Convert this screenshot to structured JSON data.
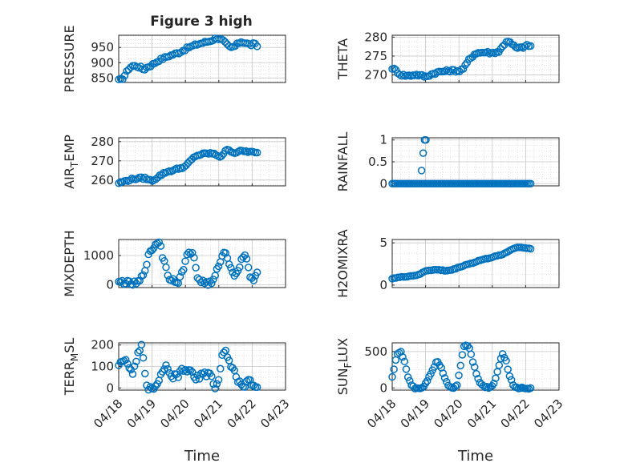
{
  "title": "Figure 3 high",
  "x_axis": {
    "label": "Time",
    "range": [
      "04/18",
      "04/23"
    ],
    "ticks": [
      "04/18",
      "04/19",
      "04/20",
      "04/21",
      "04/22",
      "04/23"
    ],
    "tick_values": [
      0,
      1,
      2,
      3,
      4,
      5
    ]
  },
  "marker": {
    "shape": "circle",
    "fill": "none",
    "color": "#0072BD"
  },
  "grid": {
    "major": true,
    "minor": true,
    "color": "#d0d0d0"
  },
  "chart_data": [
    {
      "type": "scatter",
      "ylabel": "PRESSURE",
      "ylim": [
        835,
        990
      ],
      "yticks": [
        850,
        900,
        950
      ],
      "ytick_labels": [
        "850",
        "900",
        "950"
      ],
      "anchors": [
        [
          0.0,
          842
        ],
        [
          0.1,
          846
        ],
        [
          0.2,
          862
        ],
        [
          0.3,
          880
        ],
        [
          0.4,
          890
        ],
        [
          0.55,
          888
        ],
        [
          0.65,
          885
        ],
        [
          0.75,
          877
        ],
        [
          0.85,
          885
        ],
        [
          1.0,
          893
        ],
        [
          1.2,
          908
        ],
        [
          1.5,
          922
        ],
        [
          1.8,
          933
        ],
        [
          2.1,
          950
        ],
        [
          2.4,
          962
        ],
        [
          2.7,
          970
        ],
        [
          2.95,
          981
        ],
        [
          3.1,
          975
        ],
        [
          3.25,
          958
        ],
        [
          3.35,
          948
        ],
        [
          3.5,
          955
        ],
        [
          3.65,
          970
        ],
        [
          3.8,
          965
        ],
        [
          3.95,
          958
        ],
        [
          4.05,
          962
        ],
        [
          4.15,
          955
        ]
      ],
      "n": 70,
      "noise": 4
    },
    {
      "type": "scatter",
      "ylabel": "THETA",
      "ylim": [
        268,
        280.5
      ],
      "yticks": [
        270,
        275,
        280
      ],
      "ytick_labels": [
        "270",
        "275",
        "280"
      ],
      "anchors": [
        [
          0.0,
          271.8
        ],
        [
          0.1,
          271.3
        ],
        [
          0.25,
          270.0
        ],
        [
          0.5,
          269.8
        ],
        [
          0.7,
          270.1
        ],
        [
          0.9,
          269.8
        ],
        [
          1.0,
          269.5
        ],
        [
          1.2,
          270.3
        ],
        [
          1.4,
          270.8
        ],
        [
          1.6,
          271.0
        ],
        [
          1.8,
          271.2
        ],
        [
          2.0,
          271.0
        ],
        [
          2.15,
          271.8
        ],
        [
          2.3,
          274.0
        ],
        [
          2.5,
          275.8
        ],
        [
          2.8,
          276.0
        ],
        [
          3.0,
          275.8
        ],
        [
          3.2,
          276.2
        ],
        [
          3.35,
          278.0
        ],
        [
          3.45,
          279.2
        ],
        [
          3.6,
          278.0
        ],
        [
          3.75,
          277.0
        ],
        [
          3.9,
          277.3
        ],
        [
          4.05,
          277.8
        ],
        [
          4.15,
          277.6
        ]
      ],
      "n": 75,
      "noise": 0.3
    },
    {
      "type": "scatter",
      "ylabel": "AIR_TEMP",
      "ylim": [
        257,
        282
      ],
      "yticks": [
        260,
        270,
        280
      ],
      "ytick_labels": [
        "260",
        "270",
        "280"
      ],
      "anchors": [
        [
          0.0,
          258.5
        ],
        [
          0.2,
          259.5
        ],
        [
          0.4,
          260.5
        ],
        [
          0.6,
          261.0
        ],
        [
          0.8,
          261.0
        ],
        [
          0.95,
          259.8
        ],
        [
          1.05,
          260.0
        ],
        [
          1.2,
          262.0
        ],
        [
          1.4,
          264.0
        ],
        [
          1.6,
          265.0
        ],
        [
          1.8,
          266.0
        ],
        [
          2.0,
          267.0
        ],
        [
          2.15,
          270.0
        ],
        [
          2.3,
          272.5
        ],
        [
          2.5,
          273.5
        ],
        [
          2.75,
          274.0
        ],
        [
          2.95,
          273.0
        ],
        [
          3.05,
          272.0
        ],
        [
          3.2,
          275.0
        ],
        [
          3.3,
          276.0
        ],
        [
          3.45,
          274.0
        ],
        [
          3.6,
          275.0
        ],
        [
          3.8,
          275.0
        ],
        [
          4.0,
          274.5
        ],
        [
          4.15,
          274.0
        ]
      ],
      "n": 75,
      "noise": 0.5
    },
    {
      "type": "scatter",
      "ylabel": "RAINFALL",
      "ylim": [
        -0.05,
        1.05
      ],
      "yticks": [
        0,
        0.5,
        1
      ],
      "ytick_labels": [
        "0",
        "0.5",
        "1"
      ],
      "anchors": [
        [
          0.0,
          0
        ],
        [
          4.15,
          0
        ]
      ],
      "n": 80,
      "noise": 0,
      "extra_points": [
        [
          0.88,
          0.3
        ],
        [
          0.93,
          0.7
        ],
        [
          0.97,
          1.0
        ],
        [
          1.01,
          1.0
        ]
      ]
    },
    {
      "type": "scatter",
      "ylabel": "MIXDEPTH",
      "ylim": [
        -100,
        1550
      ],
      "yticks": [
        0,
        1000
      ],
      "ytick_labels": [
        "0",
        "1000"
      ],
      "anchors": [
        [
          0.0,
          50
        ],
        [
          0.1,
          100
        ],
        [
          0.2,
          80
        ],
        [
          0.35,
          30
        ],
        [
          0.55,
          40
        ],
        [
          0.65,
          150
        ],
        [
          0.75,
          400
        ],
        [
          0.9,
          1000
        ],
        [
          1.05,
          1300
        ],
        [
          1.15,
          1450
        ],
        [
          1.25,
          1450
        ],
        [
          1.3,
          1000
        ],
        [
          1.38,
          800
        ],
        [
          1.45,
          350
        ],
        [
          1.55,
          200
        ],
        [
          1.7,
          150
        ],
        [
          1.8,
          120
        ],
        [
          1.9,
          400
        ],
        [
          2.0,
          800
        ],
        [
          2.1,
          1150
        ],
        [
          2.2,
          1100
        ],
        [
          2.3,
          700
        ],
        [
          2.35,
          250
        ],
        [
          2.5,
          100
        ],
        [
          2.65,
          50
        ],
        [
          2.8,
          40
        ],
        [
          2.9,
          300
        ],
        [
          3.0,
          700
        ],
        [
          3.1,
          1000
        ],
        [
          3.2,
          1100
        ],
        [
          3.3,
          800
        ],
        [
          3.4,
          500
        ],
        [
          3.5,
          250
        ],
        [
          3.6,
          600
        ],
        [
          3.75,
          1050
        ],
        [
          3.85,
          900
        ],
        [
          3.95,
          200
        ],
        [
          4.05,
          100
        ],
        [
          4.12,
          300
        ],
        [
          4.15,
          500
        ]
      ],
      "n": 80,
      "noise": 80
    },
    {
      "type": "scatter",
      "ylabel": "H2OMIXRA",
      "ylim": [
        -0.3,
        5.4
      ],
      "yticks": [
        0,
        5
      ],
      "ytick_labels": [
        "0",
        "5"
      ],
      "anchors": [
        [
          0.0,
          0.8
        ],
        [
          0.2,
          0.9
        ],
        [
          0.4,
          1.0
        ],
        [
          0.6,
          1.1
        ],
        [
          0.8,
          1.2
        ],
        [
          1.0,
          1.7
        ],
        [
          1.2,
          1.8
        ],
        [
          1.4,
          1.8
        ],
        [
          1.6,
          1.7
        ],
        [
          1.8,
          1.8
        ],
        [
          2.0,
          2.1
        ],
        [
          2.2,
          2.4
        ],
        [
          2.4,
          2.6
        ],
        [
          2.6,
          2.9
        ],
        [
          2.8,
          3.1
        ],
        [
          3.0,
          3.3
        ],
        [
          3.2,
          3.5
        ],
        [
          3.4,
          3.8
        ],
        [
          3.6,
          4.3
        ],
        [
          3.8,
          4.5
        ],
        [
          4.0,
          4.4
        ],
        [
          4.15,
          4.3
        ]
      ],
      "n": 75,
      "noise": 0.05
    },
    {
      "type": "scatter",
      "ylabel": "TERR_MSL",
      "ylim": [
        -10,
        210
      ],
      "yticks": [
        0,
        100,
        200
      ],
      "ytick_labels": [
        "0",
        "100",
        "200"
      ],
      "anchors": [
        [
          0.0,
          110
        ],
        [
          0.1,
          135
        ],
        [
          0.2,
          125
        ],
        [
          0.3,
          90
        ],
        [
          0.4,
          70
        ],
        [
          0.5,
          100
        ],
        [
          0.6,
          175
        ],
        [
          0.7,
          200
        ],
        [
          0.75,
          110
        ],
        [
          0.8,
          40
        ],
        [
          0.85,
          5
        ],
        [
          0.95,
          0
        ],
        [
          1.1,
          0
        ],
        [
          1.2,
          20
        ],
        [
          1.3,
          80
        ],
        [
          1.4,
          100
        ],
        [
          1.5,
          70
        ],
        [
          1.6,
          40
        ],
        [
          1.7,
          60
        ],
        [
          1.8,
          60
        ],
        [
          1.9,
          80
        ],
        [
          2.0,
          85
        ],
        [
          2.1,
          80
        ],
        [
          2.2,
          70
        ],
        [
          2.3,
          40
        ],
        [
          2.4,
          50
        ],
        [
          2.5,
          70
        ],
        [
          2.6,
          60
        ],
        [
          2.7,
          80
        ],
        [
          2.8,
          40
        ],
        [
          2.9,
          0
        ],
        [
          3.0,
          40
        ],
        [
          3.1,
          150
        ],
        [
          3.2,
          175
        ],
        [
          3.3,
          120
        ],
        [
          3.4,
          100
        ],
        [
          3.5,
          60
        ],
        [
          3.6,
          30
        ],
        [
          3.7,
          0
        ],
        [
          3.8,
          10
        ],
        [
          3.9,
          40
        ],
        [
          4.0,
          20
        ],
        [
          4.15,
          0
        ]
      ],
      "n": 80,
      "noise": 12
    },
    {
      "type": "scatter",
      "ylabel": "SUN_FLUX",
      "ylim": [
        -30,
        620
      ],
      "yticks": [
        0,
        500
      ],
      "ytick_labels": [
        "0",
        "500"
      ],
      "anchors": [
        [
          0.0,
          150
        ],
        [
          0.08,
          320
        ],
        [
          0.15,
          480
        ],
        [
          0.25,
          500
        ],
        [
          0.35,
          400
        ],
        [
          0.45,
          180
        ],
        [
          0.55,
          60
        ],
        [
          0.65,
          0
        ],
        [
          0.9,
          0
        ],
        [
          1.05,
          100
        ],
        [
          1.2,
          250
        ],
        [
          1.35,
          380
        ],
        [
          1.45,
          300
        ],
        [
          1.6,
          120
        ],
        [
          1.7,
          20
        ],
        [
          1.85,
          10
        ],
        [
          1.95,
          40
        ],
        [
          2.05,
          300
        ],
        [
          2.15,
          580
        ],
        [
          2.3,
          570
        ],
        [
          2.45,
          300
        ],
        [
          2.6,
          100
        ],
        [
          2.75,
          10
        ],
        [
          2.9,
          0
        ],
        [
          3.05,
          60
        ],
        [
          3.2,
          300
        ],
        [
          3.3,
          480
        ],
        [
          3.4,
          400
        ],
        [
          3.5,
          200
        ],
        [
          3.6,
          60
        ],
        [
          3.7,
          0
        ],
        [
          4.15,
          0
        ]
      ],
      "n": 80,
      "noise": 15
    }
  ]
}
